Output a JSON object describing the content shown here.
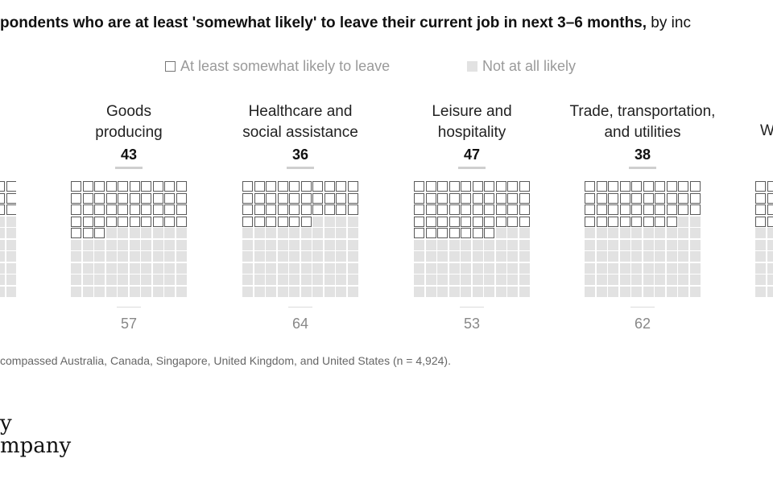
{
  "title": {
    "bold": "pondents who are at least 'somewhat likely' to leave their current job in next 3–6 months,",
    "rest": " by inc"
  },
  "legend": {
    "likely_label": "At least somewhat likely to leave",
    "not_label": "Not at all likely"
  },
  "chart_data": {
    "type": "waffle",
    "title": "",
    "series": [
      {
        "name": "At least somewhat likely to leave"
      },
      {
        "name": "Not at all likely"
      }
    ],
    "categories": [
      {
        "label_lines": [
          "Goods",
          "producing"
        ],
        "likely": 43,
        "not_likely": 57
      },
      {
        "label_lines": [
          "Healthcare and",
          "social assistance"
        ],
        "likely": 36,
        "not_likely": 64
      },
      {
        "label_lines": [
          "Leisure and",
          "hospitality"
        ],
        "likely": 47,
        "not_likely": 53
      },
      {
        "label_lines": [
          "Trade, transportation,",
          "and utilities"
        ],
        "likely": 38,
        "not_likely": 62
      }
    ],
    "partial_left": {
      "likely": 30
    },
    "partial_right": {
      "likely": 35,
      "label_fragment": "W"
    },
    "unit": "respondents per 100"
  },
  "footnote": "compassed Australia, Canada, Singapore, United Kingdom, and United States (n = 4,924).",
  "brand": {
    "line1": "y",
    "line2": "mpany"
  }
}
